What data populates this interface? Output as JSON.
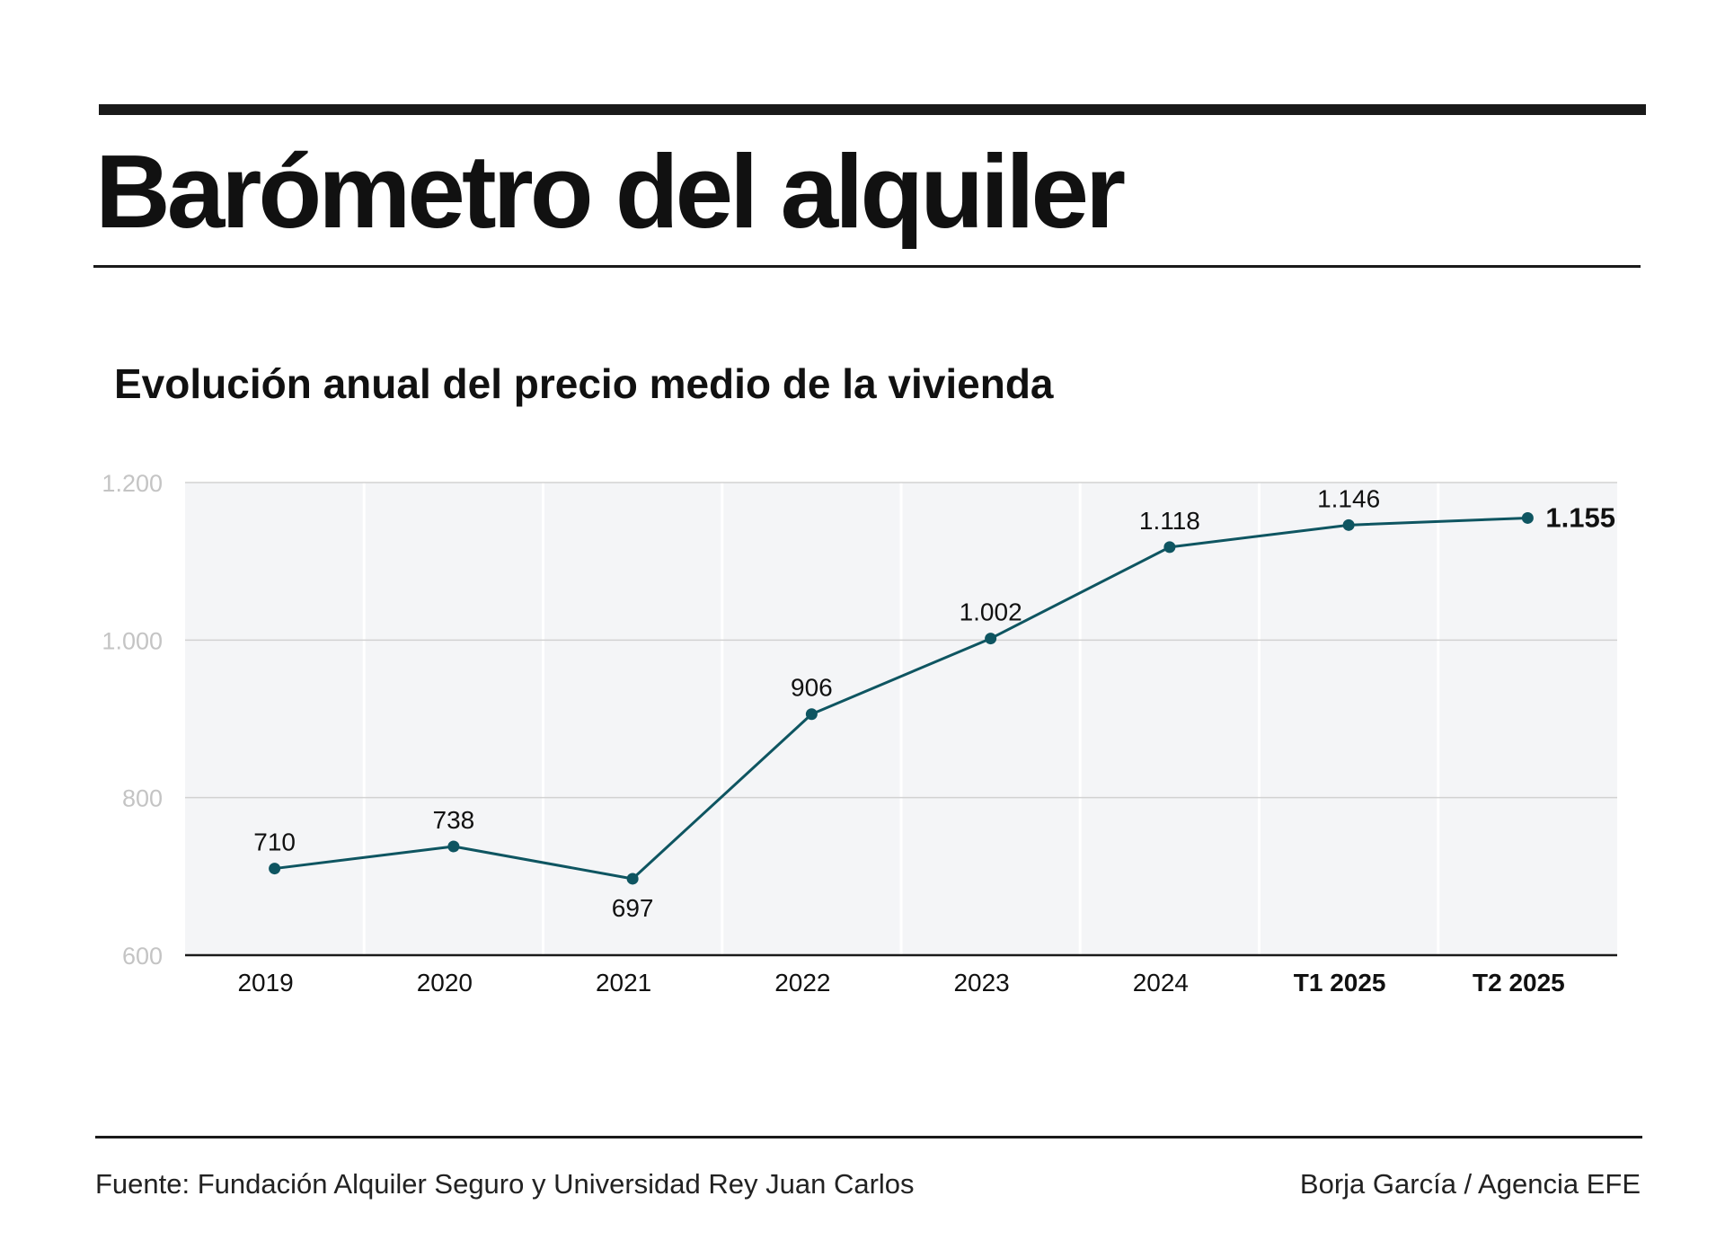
{
  "header": {
    "title": "Barómetro del alquiler",
    "subtitle": "Evolución anual del precio medio de la vivienda"
  },
  "chart_data": {
    "type": "line",
    "categories": [
      "2019",
      "2020",
      "2021",
      "2022",
      "2023",
      "2024",
      "T1 2025",
      "T2 2025"
    ],
    "bold_categories": [
      "T1 2025",
      "T2 2025"
    ],
    "values": [
      710,
      738,
      697,
      906,
      1002,
      1118,
      1146,
      1155
    ],
    "value_labels": [
      "710",
      "738",
      "697",
      "906",
      "1.002",
      "1.118",
      "1.146",
      "1.155"
    ],
    "ylim": [
      600,
      1200
    ],
    "yticks": [
      600,
      800,
      1000,
      1200
    ],
    "ytick_labels": [
      "600",
      "800",
      "1.000",
      "1.200"
    ],
    "grid": true,
    "colors": {
      "line": "#0e5561",
      "plot_background": "#f4f5f7",
      "gridline": "#d2d2d2",
      "ytick_text": "#c4c4c4"
    }
  },
  "footer": {
    "source": "Fuente: Fundación Alquiler Seguro y Universidad Rey Juan Carlos",
    "credit": "Borja García / Agencia EFE"
  }
}
